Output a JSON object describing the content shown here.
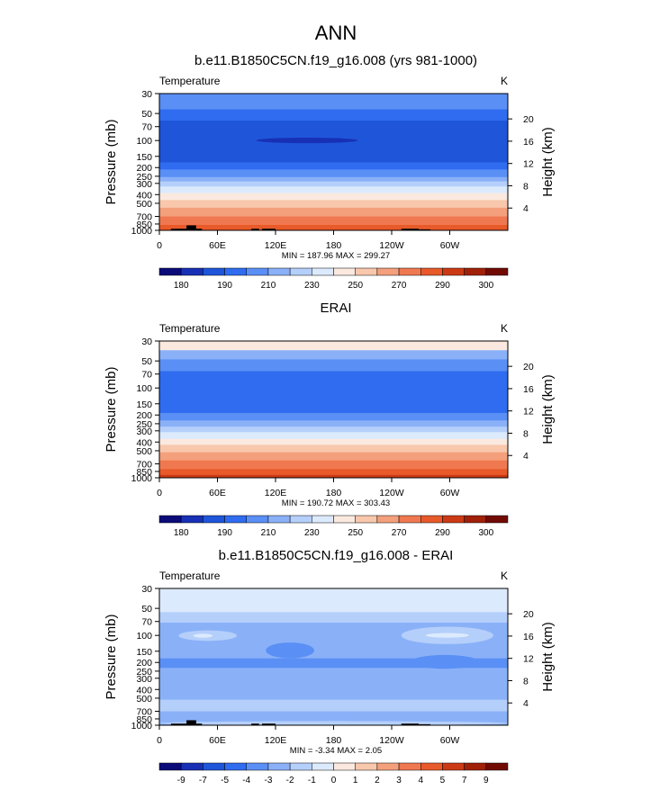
{
  "title": "ANN",
  "chart_data": [
    {
      "type": "heatmap",
      "title": "b.e11.B1850C5CN.f19_g16.008 (yrs 981-1000)",
      "left_label": "Temperature",
      "right_label": "K",
      "ylabel": "Pressure (mb)",
      "right_axis_label": "Height (km)",
      "x_ticks": [
        "0",
        "60E",
        "120E",
        "180",
        "120W",
        "60W"
      ],
      "x_tick_values": [
        0,
        60,
        120,
        180,
        240,
        300
      ],
      "y_ticks": [
        "30",
        "50",
        "70",
        "100",
        "150",
        "200",
        "250",
        "300",
        "400",
        "500",
        "700",
        "850",
        "1000"
      ],
      "y_tick_values": [
        30,
        50,
        70,
        100,
        150,
        200,
        250,
        300,
        400,
        500,
        700,
        850,
        1000
      ],
      "height_ticks": [
        "4",
        "8",
        "12",
        "16",
        "20"
      ],
      "height_tick_values": [
        4,
        8,
        12,
        16,
        20
      ],
      "xlim": [
        0,
        360
      ],
      "ylim": [
        1000,
        30
      ],
      "stats": "MIN = 187.96  MAX = 299.27",
      "bands": [
        {
          "p_top": 30,
          "p_bottom": 45,
          "level": 4
        },
        {
          "p_top": 45,
          "p_bottom": 60,
          "level": 3
        },
        {
          "p_top": 60,
          "p_bottom": 175,
          "level": 2
        },
        {
          "p_top": 175,
          "p_bottom": 210,
          "level": 3
        },
        {
          "p_top": 210,
          "p_bottom": 255,
          "level": 4
        },
        {
          "p_top": 255,
          "p_bottom": 285,
          "level": 5
        },
        {
          "p_top": 285,
          "p_bottom": 325,
          "level": 6
        },
        {
          "p_top": 325,
          "p_bottom": 385,
          "level": 7
        },
        {
          "p_top": 385,
          "p_bottom": 460,
          "level": 8
        },
        {
          "p_top": 460,
          "p_bottom": 560,
          "level": 9
        },
        {
          "p_top": 560,
          "p_bottom": 700,
          "level": 10
        },
        {
          "p_top": 700,
          "p_bottom": 870,
          "level": 11
        },
        {
          "p_top": 870,
          "p_bottom": 1000,
          "level": 12
        }
      ],
      "patches": [
        {
          "lon_from": 100,
          "lon_to": 205,
          "p_top": 93,
          "p_bottom": 107,
          "level": 1
        }
      ],
      "topography": [
        {
          "lon_from": 12,
          "lon_to": 28,
          "p_top": 960
        },
        {
          "lon_from": 28,
          "lon_to": 38,
          "p_top": 880
        },
        {
          "lon_from": 38,
          "lon_to": 44,
          "p_top": 960
        },
        {
          "lon_from": 95,
          "lon_to": 103,
          "p_top": 960
        },
        {
          "lon_from": 106,
          "lon_to": 120,
          "p_top": 960
        },
        {
          "lon_from": 250,
          "lon_to": 268,
          "p_top": 960
        },
        {
          "lon_from": 268,
          "lon_to": 280,
          "p_top": 975
        }
      ],
      "colorbar": {
        "labels": [
          "180",
          "190",
          "210",
          "230",
          "250",
          "270",
          "290",
          "300"
        ],
        "colors": [
          "#0b0b7a",
          "#1730b5",
          "#1f55d9",
          "#2f6cf0",
          "#5a8ff5",
          "#8ab1f8",
          "#b5cffb",
          "#dceafd",
          "#fbe9df",
          "#f8c7ac",
          "#f4a07c",
          "#f07850",
          "#e85a2a",
          "#cc3a15",
          "#a02008",
          "#720a04"
        ]
      }
    },
    {
      "type": "heatmap",
      "title": "ERAI",
      "left_label": "Temperature",
      "right_label": "K",
      "ylabel": "Pressure (mb)",
      "right_axis_label": "Height (km)",
      "x_ticks": [
        "0",
        "60E",
        "120E",
        "180",
        "120W",
        "60W"
      ],
      "x_tick_values": [
        0,
        60,
        120,
        180,
        240,
        300
      ],
      "y_ticks": [
        "30",
        "50",
        "70",
        "100",
        "150",
        "200",
        "250",
        "300",
        "400",
        "500",
        "700",
        "850",
        "1000"
      ],
      "y_tick_values": [
        30,
        50,
        70,
        100,
        150,
        200,
        250,
        300,
        400,
        500,
        700,
        850,
        1000
      ],
      "height_ticks": [
        "4",
        "8",
        "12",
        "16",
        "20"
      ],
      "height_tick_values": [
        4,
        8,
        12,
        16,
        20
      ],
      "xlim": [
        0,
        360
      ],
      "ylim": [
        1000,
        30
      ],
      "stats": "MIN = 190.72  MAX = 303.43",
      "bands": [
        {
          "p_top": 30,
          "p_bottom": 38,
          "level": 8
        },
        {
          "p_top": 38,
          "p_bottom": 48,
          "level": 5
        },
        {
          "p_top": 48,
          "p_bottom": 65,
          "level": 4
        },
        {
          "p_top": 65,
          "p_bottom": 190,
          "level": 3
        },
        {
          "p_top": 190,
          "p_bottom": 230,
          "level": 4
        },
        {
          "p_top": 230,
          "p_bottom": 270,
          "level": 5
        },
        {
          "p_top": 270,
          "p_bottom": 310,
          "level": 6
        },
        {
          "p_top": 310,
          "p_bottom": 370,
          "level": 7
        },
        {
          "p_top": 370,
          "p_bottom": 430,
          "level": 8
        },
        {
          "p_top": 430,
          "p_bottom": 520,
          "level": 9
        },
        {
          "p_top": 520,
          "p_bottom": 640,
          "level": 10
        },
        {
          "p_top": 640,
          "p_bottom": 800,
          "level": 11
        },
        {
          "p_top": 800,
          "p_bottom": 930,
          "level": 12
        },
        {
          "p_top": 930,
          "p_bottom": 1000,
          "level": 13
        }
      ],
      "patches": [],
      "topography": [],
      "colorbar": {
        "labels": [
          "180",
          "190",
          "210",
          "230",
          "250",
          "270",
          "290",
          "300"
        ],
        "colors": [
          "#0b0b7a",
          "#1730b5",
          "#1f55d9",
          "#2f6cf0",
          "#5a8ff5",
          "#8ab1f8",
          "#b5cffb",
          "#dceafd",
          "#fbe9df",
          "#f8c7ac",
          "#f4a07c",
          "#f07850",
          "#e85a2a",
          "#cc3a15",
          "#a02008",
          "#720a04"
        ]
      }
    },
    {
      "type": "heatmap",
      "title": "b.e11.B1850C5CN.f19_g16.008 - ERAI",
      "left_label": "Temperature",
      "right_label": "K",
      "ylabel": "Pressure (mb)",
      "right_axis_label": "Height (km)",
      "x_ticks": [
        "0",
        "60E",
        "120E",
        "180",
        "120W",
        "60W"
      ],
      "x_tick_values": [
        0,
        60,
        120,
        180,
        240,
        300
      ],
      "y_ticks": [
        "30",
        "50",
        "70",
        "100",
        "150",
        "200",
        "250",
        "300",
        "400",
        "500",
        "700",
        "850",
        "1000"
      ],
      "y_tick_values": [
        30,
        50,
        70,
        100,
        150,
        200,
        250,
        300,
        400,
        500,
        700,
        850,
        1000
      ],
      "height_ticks": [
        "4",
        "8",
        "12",
        "16",
        "20"
      ],
      "height_tick_values": [
        4,
        8,
        12,
        16,
        20
      ],
      "xlim": [
        0,
        360
      ],
      "ylim": [
        1000,
        30
      ],
      "stats": "MIN = -3.34  MAX =  2.05",
      "bands": [
        {
          "p_top": 30,
          "p_bottom": 55,
          "level": 7
        },
        {
          "p_top": 55,
          "p_bottom": 72,
          "level": 6
        },
        {
          "p_top": 72,
          "p_bottom": 180,
          "level": 5
        },
        {
          "p_top": 180,
          "p_bottom": 230,
          "level": 4
        },
        {
          "p_top": 230,
          "p_bottom": 520,
          "level": 5
        },
        {
          "p_top": 520,
          "p_bottom": 700,
          "level": 6
        },
        {
          "p_top": 700,
          "p_bottom": 1000,
          "level": 5
        }
      ],
      "patches": [
        {
          "lon_from": 20,
          "lon_to": 80,
          "p_top": 88,
          "p_bottom": 115,
          "level": 6
        },
        {
          "lon_from": 35,
          "lon_to": 55,
          "p_top": 96,
          "p_bottom": 106,
          "level": 7
        },
        {
          "lon_from": 250,
          "lon_to": 345,
          "p_top": 80,
          "p_bottom": 125,
          "level": 6
        },
        {
          "lon_from": 275,
          "lon_to": 320,
          "p_top": 94,
          "p_bottom": 106,
          "level": 7
        },
        {
          "lon_from": 110,
          "lon_to": 160,
          "p_top": 120,
          "p_bottom": 180,
          "level": 4
        },
        {
          "lon_from": 260,
          "lon_to": 330,
          "p_top": 165,
          "p_bottom": 235,
          "level": 4
        },
        {
          "lon_from": 0,
          "lon_to": 360,
          "p_top": 900,
          "p_bottom": 1000,
          "level": 6
        }
      ],
      "topography": [
        {
          "lon_from": 12,
          "lon_to": 28,
          "p_top": 960
        },
        {
          "lon_from": 28,
          "lon_to": 38,
          "p_top": 880
        },
        {
          "lon_from": 38,
          "lon_to": 44,
          "p_top": 960
        },
        {
          "lon_from": 95,
          "lon_to": 103,
          "p_top": 960
        },
        {
          "lon_from": 106,
          "lon_to": 120,
          "p_top": 960
        },
        {
          "lon_from": 250,
          "lon_to": 268,
          "p_top": 960
        },
        {
          "lon_from": 268,
          "lon_to": 280,
          "p_top": 975
        }
      ],
      "colorbar": {
        "labels": [
          "-9",
          "-7",
          "-5",
          "-4",
          "-3",
          "-2",
          "-1",
          "0",
          "1",
          "2",
          "3",
          "4",
          "5",
          "7",
          "9"
        ],
        "colors": [
          "#0b0b7a",
          "#1730b5",
          "#1f55d9",
          "#2f6cf0",
          "#5a8ff5",
          "#8ab1f8",
          "#b5cffb",
          "#dceafd",
          "#fbe9df",
          "#f8c7ac",
          "#f4a07c",
          "#f07850",
          "#e85a2a",
          "#cc3a15",
          "#a02008",
          "#720a04"
        ]
      }
    }
  ]
}
